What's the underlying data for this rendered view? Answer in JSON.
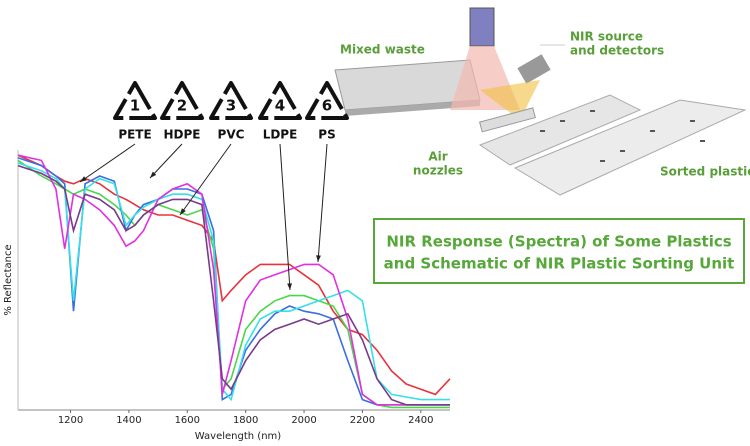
{
  "chart_data": {
    "type": "line",
    "x_label": "Wavelength (nm)",
    "y_label": "% Reflectance",
    "xlim": [
      1020,
      2500
    ],
    "ylim": [
      0,
      100
    ],
    "xticks": [
      1200,
      1400,
      1600,
      1800,
      2000,
      2200,
      2400
    ],
    "x": [
      1020,
      1100,
      1150,
      1180,
      1210,
      1250,
      1300,
      1350,
      1390,
      1420,
      1450,
      1500,
      1550,
      1600,
      1650,
      1690,
      1720,
      1750,
      1800,
      1850,
      1900,
      1950,
      2000,
      2050,
      2100,
      2150,
      2200,
      2250,
      2300,
      2350,
      2400,
      2450,
      2500
    ],
    "series": [
      {
        "color": "#e8323c",
        "values": [
          98,
          94,
          90,
          88,
          87,
          89,
          87,
          83,
          81,
          79,
          77,
          75,
          75,
          73,
          71,
          65,
          42,
          46,
          52,
          56,
          56,
          56,
          52,
          48,
          38,
          31,
          29,
          23,
          15,
          10,
          8,
          6,
          12
        ]
      },
      {
        "color": "#4cd64c",
        "values": [
          96,
          90,
          87,
          85,
          83,
          85,
          83,
          79,
          75,
          71,
          75,
          79,
          77,
          75,
          77,
          62,
          8,
          12,
          31,
          38,
          42,
          44,
          44,
          42,
          40,
          31,
          6,
          2,
          1,
          1,
          1,
          1,
          1
        ]
      },
      {
        "color": "#3a6fe0",
        "values": [
          97,
          94,
          90,
          87,
          38,
          87,
          90,
          88,
          69,
          75,
          79,
          81,
          85,
          85,
          83,
          69,
          4,
          6,
          23,
          31,
          37,
          40,
          38,
          37,
          35,
          19,
          4,
          2,
          2,
          2,
          2,
          2,
          2
        ]
      },
      {
        "color": "#35e0e8",
        "values": [
          95,
          92,
          89,
          85,
          42,
          85,
          89,
          87,
          71,
          75,
          78,
          81,
          83,
          83,
          81,
          65,
          8,
          4,
          25,
          35,
          38,
          38,
          40,
          42,
          44,
          46,
          42,
          12,
          6,
          5,
          4,
          4,
          4
        ]
      },
      {
        "color": "#e030e0",
        "values": [
          98,
          96,
          85,
          62,
          83,
          81,
          77,
          71,
          63,
          65,
          69,
          81,
          85,
          87,
          83,
          54,
          6,
          19,
          42,
          50,
          52,
          54,
          56,
          56,
          52,
          35,
          6,
          2,
          2,
          2,
          2,
          2,
          2
        ]
      },
      {
        "color": "#7a3a8a",
        "values": [
          94,
          91,
          88,
          85,
          69,
          83,
          81,
          77,
          69,
          71,
          75,
          79,
          81,
          81,
          79,
          42,
          12,
          8,
          19,
          27,
          31,
          33,
          35,
          33,
          35,
          37,
          27,
          12,
          4,
          2,
          2,
          2,
          2
        ]
      }
    ],
    "resins": [
      {
        "number": "1",
        "label": "PETE"
      },
      {
        "number": "2",
        "label": "HDPE"
      },
      {
        "number": "3",
        "label": "PVC"
      },
      {
        "number": "4",
        "label": "LDPE"
      },
      {
        "number": "6",
        "label": "PS"
      }
    ],
    "schematic": {
      "mixed_waste": "Mixed waste",
      "nir_source": [
        "NIR source",
        "and detectors"
      ],
      "air_nozzles": [
        "Air",
        "nozzles"
      ],
      "sorted": "Sorted plastic"
    },
    "title_lines": [
      "NIR Response (Spectra) of Some Plastics",
      "and Schematic of NIR Plastic Sorting Unit"
    ]
  }
}
